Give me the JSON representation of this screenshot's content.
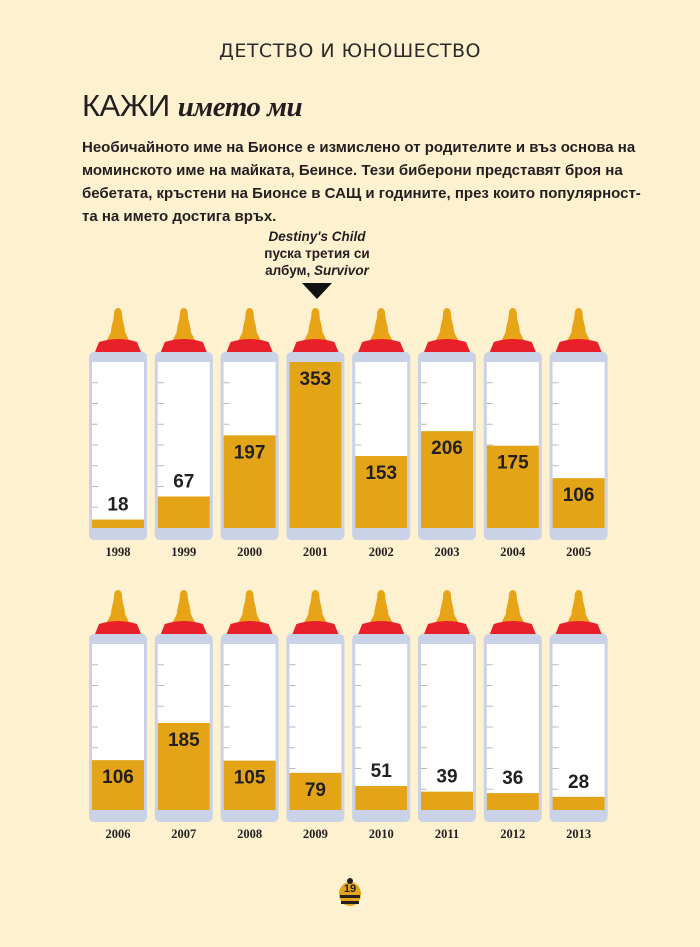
{
  "header": {
    "section": "ДЕТСТВО И ЮНОШЕСТВО"
  },
  "title": {
    "caps": "КАЖИ",
    "italic": "името ми"
  },
  "intro": "Необичайното име на Бионсе е измислено от родителите и въз основа на моминското име на майката, Беинсе. Тези биберони представят броя на бебетата, кръстени на Бионсе в САЩ и годините, през които популярност-та на името достига връх.",
  "annotation": {
    "line1": "Destiny's Child",
    "line2": "пуска третия си",
    "line3_plain": "албум, ",
    "line3_italic": "Survivor"
  },
  "page_number": "19",
  "colors": {
    "milk": "#e3a418",
    "cap": "#e8202a",
    "nipple": "#e8a417",
    "bottle": "#c9d2e6",
    "background": "#fdf1d0"
  },
  "chart_data": {
    "type": "bar",
    "categories": [
      "1998",
      "1999",
      "2000",
      "2001",
      "2002",
      "2003",
      "2004",
      "2005",
      "2006",
      "2007",
      "2008",
      "2009",
      "2010",
      "2011",
      "2012",
      "2013"
    ],
    "values": [
      18,
      67,
      197,
      353,
      153,
      206,
      175,
      106,
      106,
      185,
      105,
      79,
      51,
      39,
      36,
      28
    ],
    "ylim": [
      0,
      353
    ],
    "title": "",
    "xlabel": "",
    "ylabel": ""
  }
}
